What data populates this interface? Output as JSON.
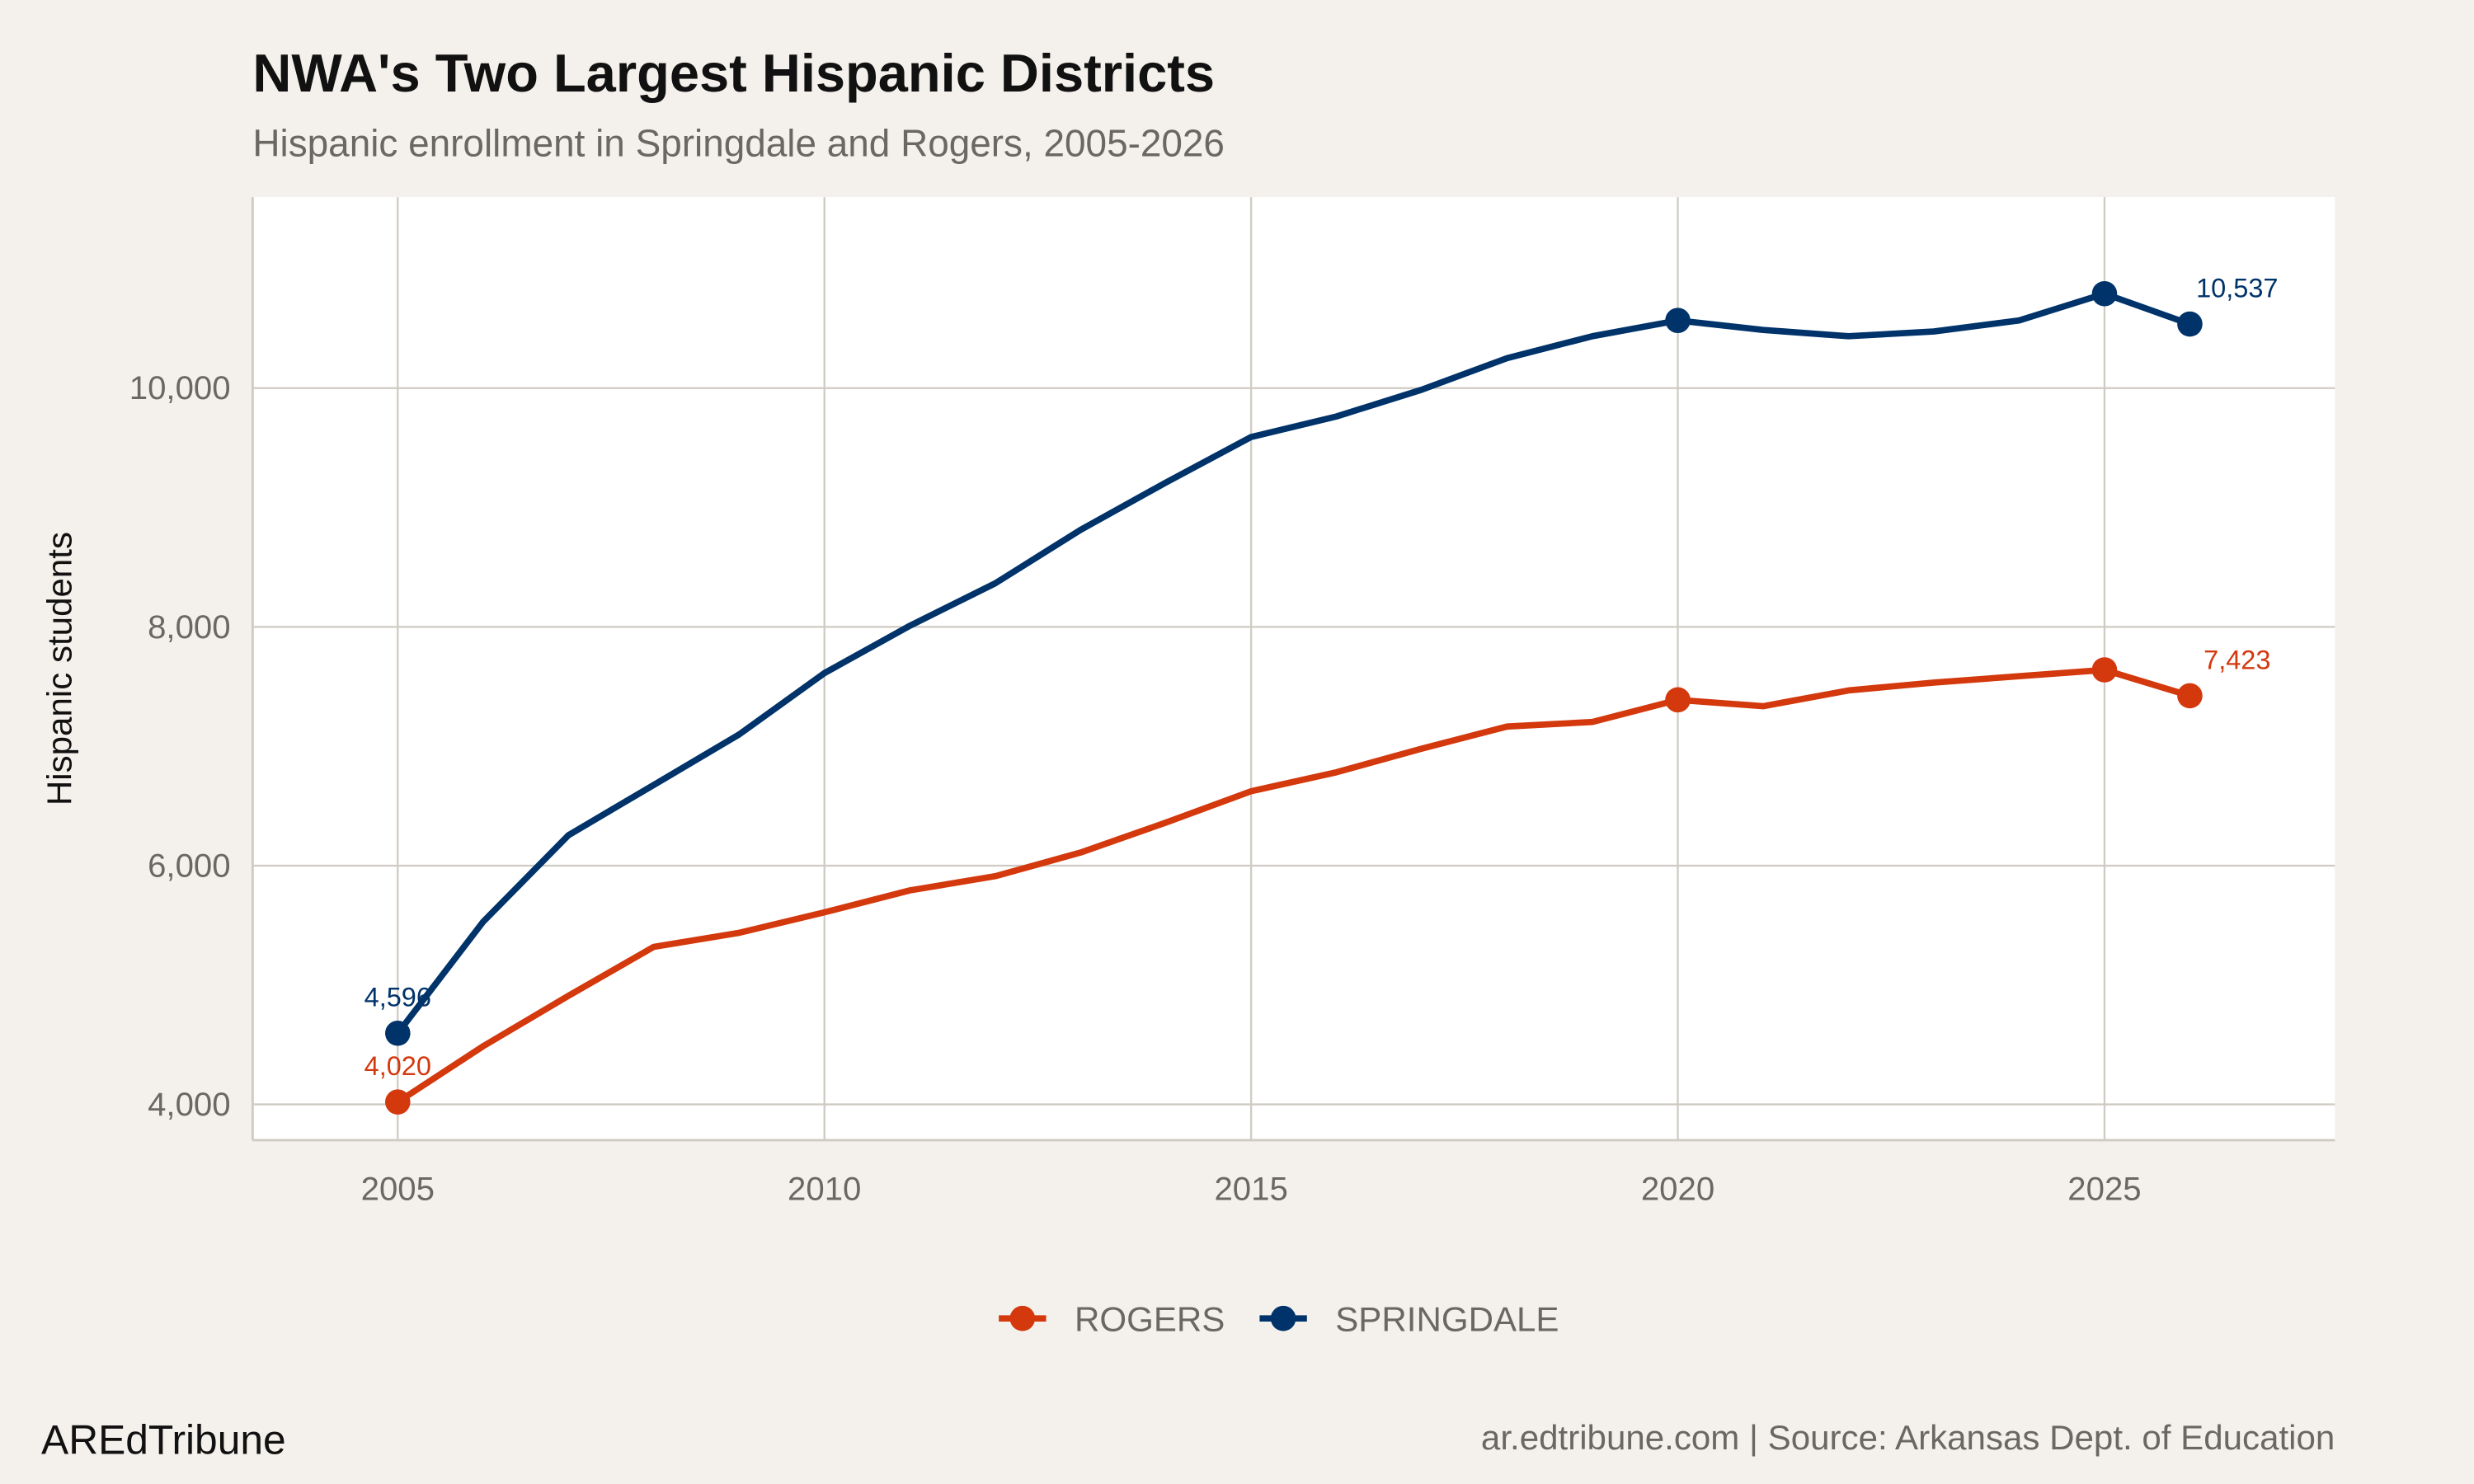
{
  "chart_data": {
    "type": "line",
    "title": "NWA's Two Largest Hispanic Districts",
    "subtitle": "Hispanic enrollment in Springdale and Rogers, 2005-2026",
    "xlabel": "",
    "ylabel": "Hispanic students",
    "xlim": [
      2003.3,
      2027.7
    ],
    "ylim": [
      3700,
      11600
    ],
    "x_ticks": [
      2005,
      2010,
      2015,
      2020,
      2025
    ],
    "x_tick_labels": [
      "2005",
      "2010",
      "2015",
      "2020",
      "2025"
    ],
    "y_ticks": [
      4000,
      6000,
      8000,
      10000
    ],
    "y_tick_labels": [
      "4,000",
      "6,000",
      "8,000",
      "10,000"
    ],
    "grid": true,
    "legend_position": "bottom",
    "x": [
      2005,
      2006,
      2007,
      2008,
      2009,
      2010,
      2011,
      2012,
      2013,
      2014,
      2015,
      2016,
      2017,
      2018,
      2019,
      2020,
      2021,
      2022,
      2023,
      2024,
      2025,
      2026
    ],
    "marker_years": [
      2005,
      2020,
      2025,
      2026
    ],
    "series": [
      {
        "name": "ROGERS",
        "color": "#d4380d",
        "values": [
          4020,
          4488,
          4910,
          5319,
          5437,
          5609,
          5793,
          5912,
          6110,
          6361,
          6624,
          6782,
          6980,
          7165,
          7204,
          7389,
          7336,
          7468,
          7534,
          7587,
          7640,
          7423
        ],
        "data_labels": [
          {
            "x": 2005,
            "text": "4,020"
          },
          {
            "x": 2026,
            "text": "7,423"
          }
        ]
      },
      {
        "name": "SPRINGDALE",
        "color": "#00336a",
        "values": [
          4596,
          5530,
          6255,
          6677,
          7099,
          7613,
          8009,
          8365,
          8813,
          9209,
          9591,
          9763,
          9987,
          10251,
          10435,
          10567,
          10488,
          10435,
          10475,
          10567,
          10791,
          10537
        ],
        "data_labels": [
          {
            "x": 2005,
            "text": "4,596"
          },
          {
            "x": 2026,
            "text": "10,537"
          }
        ]
      }
    ]
  },
  "caption": {
    "brand": "AREdTribune",
    "source": "ar.edtribune.com | Source: Arkansas Dept. of Education"
  },
  "colors": {
    "background": "#f4f1ec",
    "panel": "#ffffff",
    "grid": "#cfcbc4"
  }
}
